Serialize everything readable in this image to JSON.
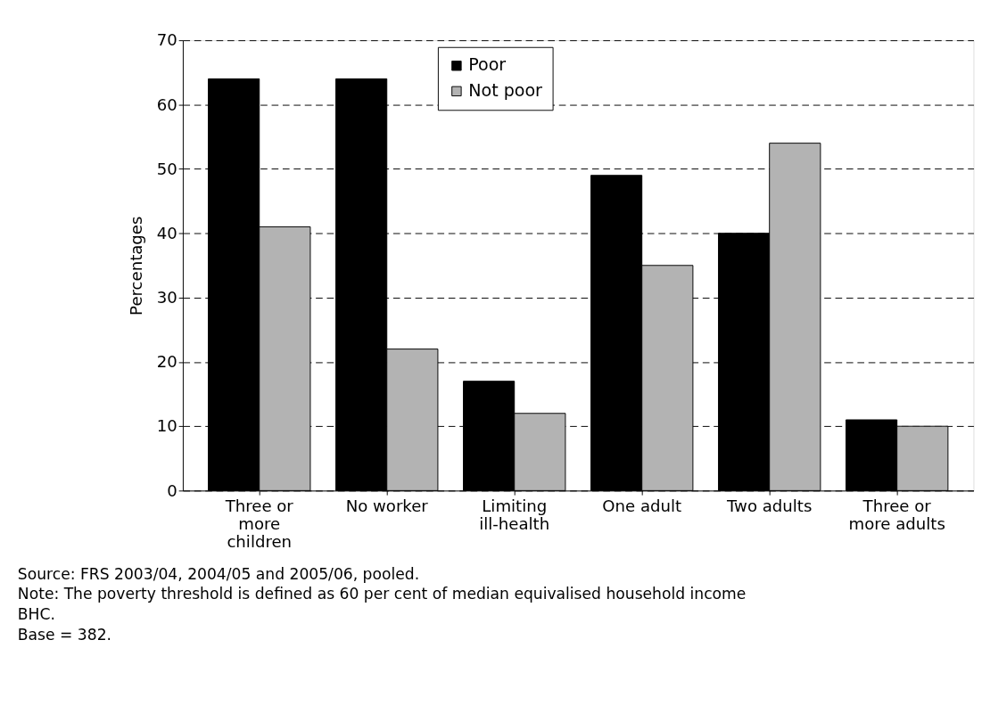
{
  "chart_data": {
    "type": "bar",
    "ylabel": "Percentages",
    "categories": [
      "Three or more children",
      "No worker",
      "Limiting ill-health",
      "One adult",
      "Two adults",
      "Three or more adults"
    ],
    "series": [
      {
        "name": "Poor",
        "color": "#000000",
        "values": [
          64,
          64,
          17,
          49,
          40,
          11
        ]
      },
      {
        "name": "Not poor",
        "color": "#b3b3b3",
        "values": [
          41,
          22,
          12,
          35,
          54,
          10
        ]
      }
    ],
    "ylim": [
      0,
      70
    ],
    "yticks": [
      0,
      10,
      20,
      30,
      40,
      50,
      60,
      70
    ],
    "grid": "y",
    "legend": "top",
    "annotations": [
      "Source: FRS 2003/04, 2004/05 and 2005/06, pooled.",
      "Note: The poverty threshold is defined as 60 per cent of median equivalised household income BHC.",
      "Base = 382."
    ]
  }
}
